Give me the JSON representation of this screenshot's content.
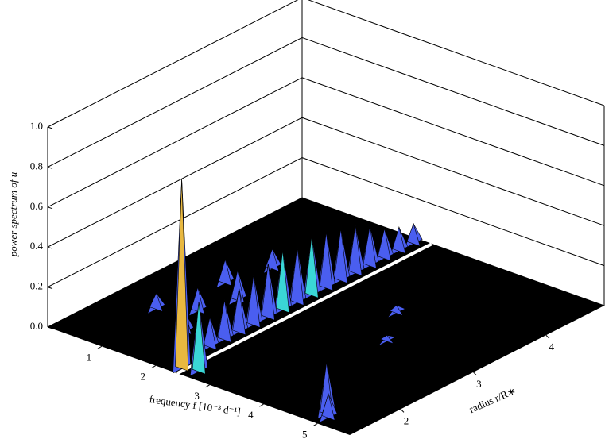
{
  "chart_data": {
    "type": "surface3d",
    "xlabel": "frequency f [10⁻³ d⁻¹]",
    "ylabel": "radius r/R∗",
    "zlabel": "power spectrum of u",
    "xlim": [
      0,
      5.6
    ],
    "ylim": [
      1.3,
      4.8
    ],
    "zlim": [
      0,
      1
    ],
    "xticks": [
      1,
      2,
      3,
      4,
      5
    ],
    "yticks": [
      2,
      3,
      4
    ],
    "zticks": [
      {
        "value": 0,
        "label": "0.0"
      },
      0.2,
      0.4,
      0.6,
      0.8,
      {
        "value": 1,
        "label": "1.0"
      }
    ],
    "colors": [
      "#4a5ef0",
      "#3ad6d6",
      "#e8b840"
    ],
    "x": [
      2.2,
      2.2,
      2.2,
      2.2,
      1.2,
      2.2,
      2.2,
      2.2,
      1.0,
      2.2,
      1.5,
      2.2,
      2.2,
      1.3,
      2.2,
      2.2,
      0.8,
      1.6,
      2.2,
      2.2,
      2.2,
      3.5,
      4.0,
      2.35,
      2.6,
      4.9,
      5.0
    ],
    "y": [
      4.7,
      4.5,
      4.3,
      4.1,
      3.5,
      3.9,
      3.7,
      3.5,
      3.0,
      3.3,
      2.8,
      3.1,
      2.9,
      2.4,
      2.7,
      2.5,
      2.2,
      2.0,
      2.3,
      2.1,
      1.9,
      3.5,
      3.0,
      1.4,
      1.45,
      1.5,
      1.45
    ],
    "values": [
      0.1,
      0.12,
      0.15,
      0.2,
      0.1,
      0.24,
      0.26,
      0.28,
      0.12,
      0.3,
      0.15,
      0.28,
      0.3,
      0.12,
      0.27,
      0.25,
      0.08,
      0.1,
      0.22,
      0.2,
      0.15,
      0.04,
      0.03,
      0.95,
      0.35,
      0.26,
      0.12
    ]
  }
}
